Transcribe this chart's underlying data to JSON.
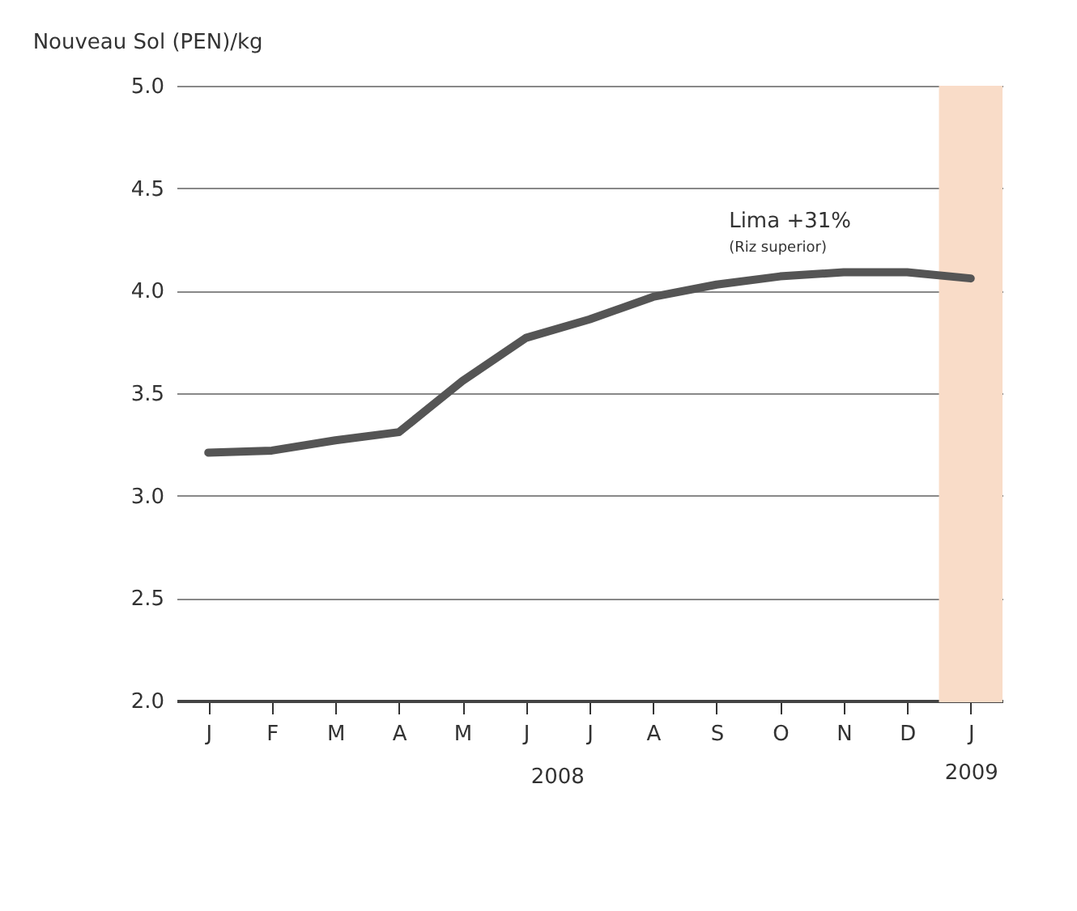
{
  "chart_data": {
    "type": "line",
    "ylabel": "Nouveau Sol (PEN)/kg",
    "categories": [
      "J",
      "F",
      "M",
      "A",
      "M",
      "J",
      "J",
      "A",
      "S",
      "O",
      "N",
      "D",
      "J\n2009"
    ],
    "series": [
      {
        "color": "#555555",
        "values": [
          3.21,
          3.22,
          3.27,
          3.31,
          3.56,
          3.77,
          3.86,
          3.97,
          4.03,
          4.07,
          4.09,
          4.09,
          4.06
        ]
      }
    ],
    "ylim": [
      2.0,
      5.0
    ],
    "yticks": [
      {
        "value": 2.0,
        "label": "2.0"
      },
      {
        "value": 2.5,
        "label": "2.5"
      },
      {
        "value": 3.0,
        "label": "3.0"
      },
      {
        "value": 3.5,
        "label": "3.5"
      },
      {
        "value": 4.0,
        "label": "4.0"
      },
      {
        "value": 4.5,
        "label": "4.5"
      },
      {
        "value": 5.0,
        "label": "5.0"
      }
    ],
    "grid": "y",
    "marker": "none",
    "line_style": "solid",
    "bands": [
      {
        "axis": "x",
        "from": "J\n2009",
        "to": "J\n2009",
        "color": "#f9dcc8"
      }
    ],
    "annotations": [
      "Lima +31%",
      "(Riz superior)",
      "2008"
    ]
  }
}
